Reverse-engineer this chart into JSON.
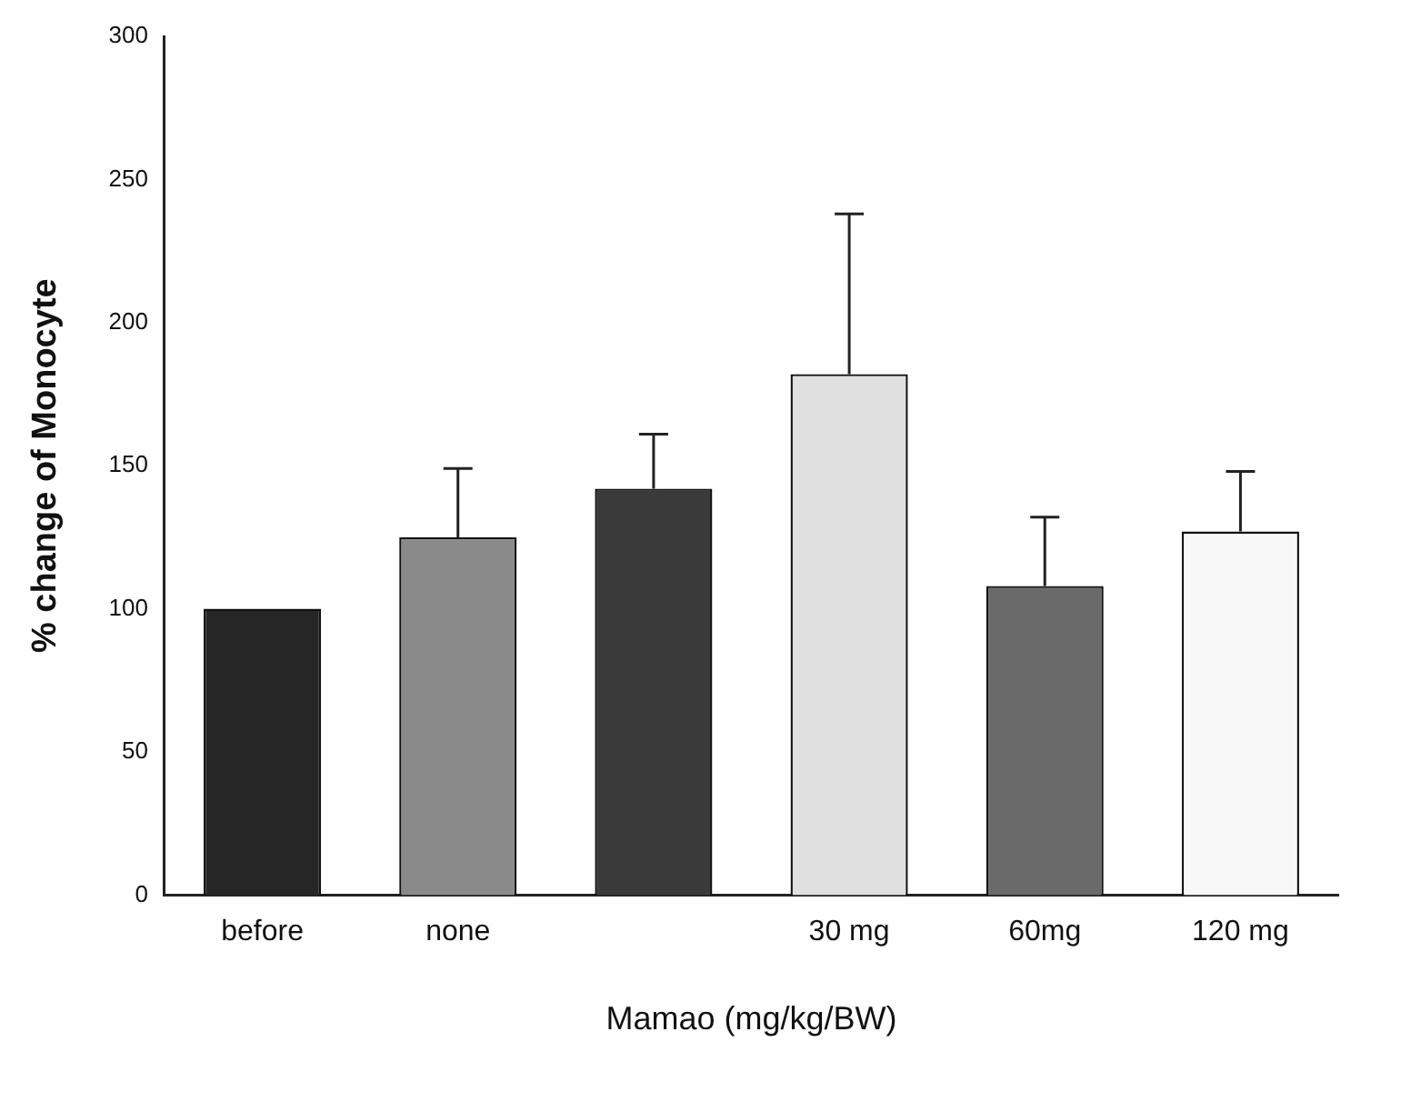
{
  "chart_data": {
    "type": "bar",
    "xlabel": "Mamao (mg/kg/BW)",
    "ylabel": "% change of Monocyte",
    "categories": [
      "before",
      "none",
      null,
      "30 mg",
      "60mg",
      "120 mg"
    ],
    "values": [
      100,
      125,
      142,
      182,
      108,
      127
    ],
    "colors": [
      "#262626",
      "#8a8a8a",
      "#3a3a3a",
      "#e0e0e0",
      "#6a6a6a",
      "#f8f8f8"
    ],
    "errors": [
      null,
      [
        125,
        149
      ],
      [
        142,
        161
      ],
      [
        182,
        238
      ],
      [
        108,
        132
      ],
      [
        127,
        148
      ]
    ],
    "ylim": [
      0,
      300
    ],
    "yticks": [
      0,
      50,
      100,
      150,
      200,
      250,
      300
    ],
    "grid": false,
    "legend": false
  }
}
